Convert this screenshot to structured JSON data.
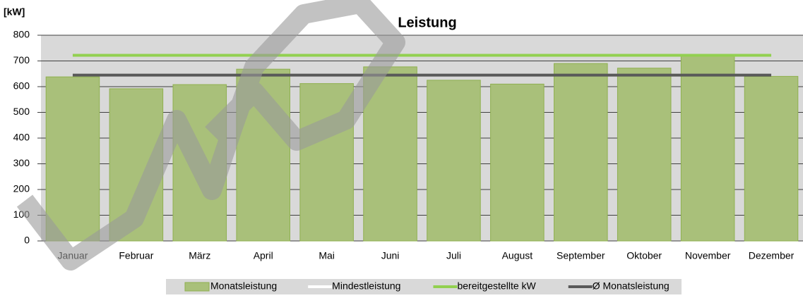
{
  "chart_data": {
    "type": "bar",
    "title": "Leistung",
    "y_label": "[kW]",
    "categories": [
      "Januar",
      "Februar",
      "März",
      "April",
      "Mai",
      "Juni",
      "Juli",
      "August",
      "September",
      "Oktober",
      "November",
      "Dezember"
    ],
    "series": [
      {
        "name": "Monatsleistung",
        "type": "bar",
        "color": "#a9c07a",
        "values": [
          638,
          592,
          608,
          668,
          612,
          677,
          625,
          610,
          690,
          672,
          718,
          640
        ]
      },
      {
        "name": "Mindestleistung",
        "type": "line",
        "color": "#ffffff",
        "values": [
          null,
          null,
          null,
          null,
          null,
          null,
          null,
          null,
          null,
          null,
          null,
          null
        ]
      },
      {
        "name": "bereitgestellte kW",
        "type": "line",
        "color": "#92d050",
        "values": [
          722,
          722,
          722,
          722,
          722,
          722,
          722,
          722,
          722,
          722,
          722,
          722
        ]
      },
      {
        "name": "Ø Monatsleistung",
        "type": "line",
        "color": "#595959",
        "values": [
          645,
          645,
          645,
          645,
          645,
          645,
          645,
          645,
          645,
          645,
          645,
          645
        ]
      }
    ],
    "ylim": [
      0,
      800
    ],
    "yticks": [
      0,
      100,
      200,
      300,
      400,
      500,
      600,
      700,
      800
    ],
    "grid": true
  }
}
